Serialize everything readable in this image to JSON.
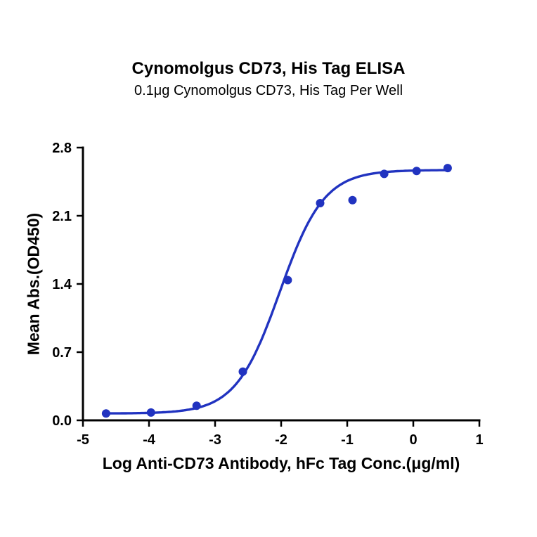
{
  "page": {
    "background": "#ffffff"
  },
  "chart_data": {
    "type": "scatter",
    "title": "Cynomolgus CD73, His Tag ELISA",
    "subtitle": "0.1μg Cynomolgus CD73, His Tag Per Well",
    "xlabel": "Log Anti-CD73 Antibody, hFc Tag Conc.(μg/ml)",
    "ylabel": "Mean Abs.(OD450)",
    "xlim": [
      -5,
      1
    ],
    "ylim": [
      0,
      2.8
    ],
    "x_ticks": [
      -5,
      -4,
      -3,
      -2,
      -1,
      0,
      1
    ],
    "x_tick_labels": [
      "-5",
      "-4",
      "-3",
      "-2",
      "-1",
      "0",
      "1"
    ],
    "y_ticks": [
      0,
      0.7,
      1.4,
      2.1,
      2.8
    ],
    "y_tick_labels": [
      "0.0",
      "0.7",
      "1.4",
      "2.1",
      "2.8"
    ],
    "series": [
      {
        "name": "Anti-CD73 Antibody, hFc Tag",
        "x": [
          -4.65,
          -3.97,
          -3.28,
          -2.58,
          -1.9,
          -1.41,
          -0.92,
          -0.44,
          0.05,
          0.52
        ],
        "y": [
          0.07,
          0.08,
          0.15,
          0.5,
          1.44,
          2.23,
          2.26,
          2.53,
          2.56,
          2.59
        ]
      }
    ],
    "fit": {
      "model": "4PL",
      "bottom": 0.07,
      "top": 2.57,
      "logEC50": -2.02,
      "hill": 1.3,
      "range": [
        -4.65,
        0.55
      ]
    },
    "colors": {
      "curve": "#2133c0",
      "point": "#2133c0",
      "axis": "#000000"
    },
    "grid": false,
    "legend": "none"
  }
}
